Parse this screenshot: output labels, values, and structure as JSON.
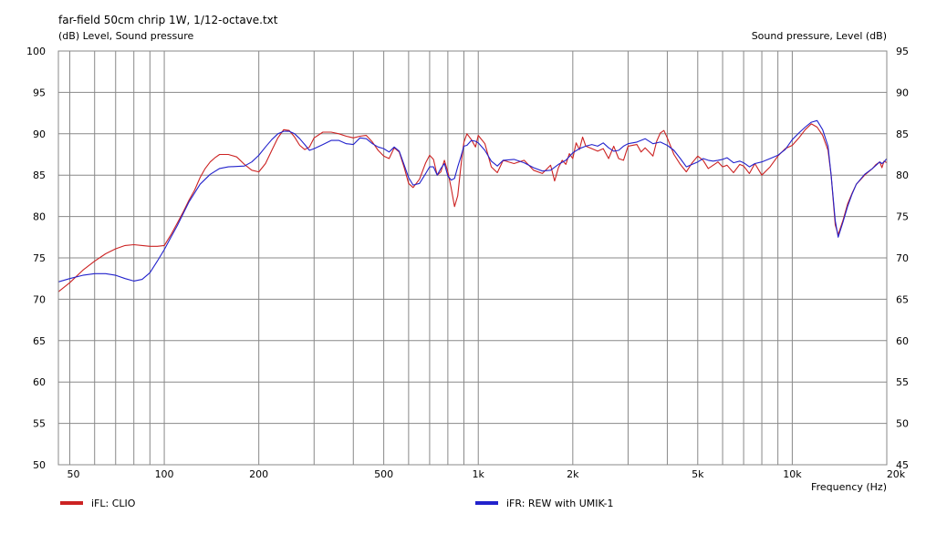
{
  "chart_data": {
    "type": "line",
    "title": "far-field 50cm chrip 1W, 1/12-octave.txt",
    "ylabel_left": "(dB)  Level, Sound pressure",
    "ylabel_right": "Sound pressure, Level  (dB)",
    "xlabel": "Frequency  (Hz)",
    "x_scale": "log",
    "xlim": [
      46,
      20000
    ],
    "ylim": [
      50,
      100
    ],
    "ylim_right": [
      45,
      95
    ],
    "x_ticks": [
      {
        "v": 50,
        "label": "50"
      },
      {
        "v": 100,
        "label": "100"
      },
      {
        "v": 200,
        "label": "200"
      },
      {
        "v": 500,
        "label": "500"
      },
      {
        "v": 1000,
        "label": "1k"
      },
      {
        "v": 2000,
        "label": "2k"
      },
      {
        "v": 5000,
        "label": "5k"
      },
      {
        "v": 10000,
        "label": "10k"
      },
      {
        "v": 20000,
        "label": "20k"
      }
    ],
    "y_ticks_left": [
      "100",
      "95",
      "90",
      "85",
      "80",
      "75",
      "70",
      "65",
      "60",
      "55",
      "50"
    ],
    "y_ticks_right": [
      "95",
      "90",
      "85",
      "80",
      "75",
      "70",
      "65",
      "60",
      "55",
      "50",
      "45"
    ],
    "grid": true,
    "legend_position": "bottom",
    "series": [
      {
        "name": "iFL: CLIO",
        "color": "#cc2222",
        "points": [
          [
            46,
            70.9
          ],
          [
            50,
            72.0
          ],
          [
            55,
            73.5
          ],
          [
            60,
            74.6
          ],
          [
            65,
            75.5
          ],
          [
            70,
            76.1
          ],
          [
            75,
            76.5
          ],
          [
            80,
            76.6
          ],
          [
            85,
            76.5
          ],
          [
            90,
            76.4
          ],
          [
            95,
            76.4
          ],
          [
            100,
            76.5
          ],
          [
            105,
            77.8
          ],
          [
            110,
            79.2
          ],
          [
            115,
            80.6
          ],
          [
            120,
            82.0
          ],
          [
            125,
            83.2
          ],
          [
            130,
            84.7
          ],
          [
            135,
            85.8
          ],
          [
            140,
            86.6
          ],
          [
            145,
            87.1
          ],
          [
            150,
            87.5
          ],
          [
            160,
            87.5
          ],
          [
            170,
            87.2
          ],
          [
            180,
            86.3
          ],
          [
            190,
            85.6
          ],
          [
            200,
            85.4
          ],
          [
            210,
            86.4
          ],
          [
            220,
            88.0
          ],
          [
            230,
            89.5
          ],
          [
            240,
            90.5
          ],
          [
            250,
            90.4
          ],
          [
            260,
            89.6
          ],
          [
            270,
            88.6
          ],
          [
            280,
            88.1
          ],
          [
            290,
            88.4
          ],
          [
            300,
            89.5
          ],
          [
            320,
            90.2
          ],
          [
            340,
            90.2
          ],
          [
            360,
            90.0
          ],
          [
            380,
            89.7
          ],
          [
            400,
            89.5
          ],
          [
            420,
            89.7
          ],
          [
            440,
            89.8
          ],
          [
            460,
            89.0
          ],
          [
            480,
            88.0
          ],
          [
            500,
            87.3
          ],
          [
            520,
            87.0
          ],
          [
            540,
            88.3
          ],
          [
            560,
            87.8
          ],
          [
            580,
            86.0
          ],
          [
            600,
            84.0
          ],
          [
            620,
            83.5
          ],
          [
            650,
            84.5
          ],
          [
            680,
            86.5
          ],
          [
            700,
            87.4
          ],
          [
            720,
            86.9
          ],
          [
            740,
            85.0
          ],
          [
            760,
            85.4
          ],
          [
            780,
            86.8
          ],
          [
            800,
            85.4
          ],
          [
            820,
            83.4
          ],
          [
            840,
            81.2
          ],
          [
            860,
            82.5
          ],
          [
            880,
            86.0
          ],
          [
            900,
            89.0
          ],
          [
            920,
            90.0
          ],
          [
            950,
            89.3
          ],
          [
            980,
            88.4
          ],
          [
            1000,
            89.8
          ],
          [
            1050,
            88.8
          ],
          [
            1100,
            86.0
          ],
          [
            1150,
            85.3
          ],
          [
            1200,
            86.8
          ],
          [
            1300,
            86.4
          ],
          [
            1400,
            86.8
          ],
          [
            1500,
            85.6
          ],
          [
            1600,
            85.2
          ],
          [
            1700,
            86.2
          ],
          [
            1750,
            84.3
          ],
          [
            1800,
            85.9
          ],
          [
            1850,
            86.8
          ],
          [
            1900,
            86.3
          ],
          [
            1950,
            87.6
          ],
          [
            2000,
            87.0
          ],
          [
            2050,
            88.9
          ],
          [
            2100,
            88.1
          ],
          [
            2150,
            89.6
          ],
          [
            2200,
            88.5
          ],
          [
            2300,
            88.2
          ],
          [
            2400,
            87.9
          ],
          [
            2500,
            88.2
          ],
          [
            2600,
            87.0
          ],
          [
            2700,
            88.5
          ],
          [
            2800,
            87.0
          ],
          [
            2900,
            86.8
          ],
          [
            3000,
            88.5
          ],
          [
            3200,
            88.7
          ],
          [
            3300,
            87.8
          ],
          [
            3400,
            88.3
          ],
          [
            3500,
            87.8
          ],
          [
            3600,
            87.3
          ],
          [
            3700,
            89.1
          ],
          [
            3800,
            90.1
          ],
          [
            3900,
            90.4
          ],
          [
            4000,
            89.5
          ],
          [
            4200,
            87.5
          ],
          [
            4400,
            86.3
          ],
          [
            4600,
            85.4
          ],
          [
            4800,
            86.5
          ],
          [
            5000,
            87.3
          ],
          [
            5200,
            86.8
          ],
          [
            5400,
            85.8
          ],
          [
            5600,
            86.2
          ],
          [
            5800,
            86.6
          ],
          [
            6000,
            86.0
          ],
          [
            6200,
            86.2
          ],
          [
            6500,
            85.3
          ],
          [
            6800,
            86.3
          ],
          [
            7000,
            86.1
          ],
          [
            7300,
            85.2
          ],
          [
            7600,
            86.4
          ],
          [
            8000,
            85.0
          ],
          [
            8500,
            86.0
          ],
          [
            9000,
            87.3
          ],
          [
            9500,
            88.2
          ],
          [
            10000,
            88.6
          ],
          [
            10500,
            89.5
          ],
          [
            11000,
            90.5
          ],
          [
            11500,
            91.2
          ],
          [
            12000,
            90.8
          ],
          [
            12500,
            89.8
          ],
          [
            13000,
            88.0
          ],
          [
            13300,
            85.0
          ],
          [
            13700,
            79.0
          ],
          [
            14000,
            77.8
          ],
          [
            14500,
            79.5
          ],
          [
            15000,
            81.5
          ],
          [
            15500,
            82.8
          ],
          [
            16000,
            83.9
          ],
          [
            17000,
            85.0
          ],
          [
            18000,
            85.8
          ],
          [
            18500,
            86.3
          ],
          [
            19000,
            86.6
          ],
          [
            19300,
            85.9
          ],
          [
            19600,
            86.7
          ],
          [
            20000,
            86.5
          ]
        ]
      },
      {
        "name": "iFR: REW with UMIK-1",
        "color": "#2222cc",
        "points": [
          [
            46,
            72.1
          ],
          [
            50,
            72.5
          ],
          [
            55,
            72.9
          ],
          [
            60,
            73.1
          ],
          [
            65,
            73.1
          ],
          [
            70,
            72.9
          ],
          [
            75,
            72.5
          ],
          [
            80,
            72.2
          ],
          [
            85,
            72.4
          ],
          [
            90,
            73.2
          ],
          [
            95,
            74.6
          ],
          [
            100,
            76.0
          ],
          [
            105,
            77.5
          ],
          [
            110,
            78.9
          ],
          [
            115,
            80.4
          ],
          [
            120,
            81.8
          ],
          [
            130,
            83.9
          ],
          [
            140,
            85.1
          ],
          [
            150,
            85.8
          ],
          [
            160,
            86.0
          ],
          [
            180,
            86.1
          ],
          [
            190,
            86.6
          ],
          [
            200,
            87.4
          ],
          [
            210,
            88.4
          ],
          [
            220,
            89.3
          ],
          [
            230,
            90.0
          ],
          [
            240,
            90.3
          ],
          [
            250,
            90.3
          ],
          [
            260,
            90.0
          ],
          [
            270,
            89.4
          ],
          [
            280,
            88.7
          ],
          [
            290,
            88.0
          ],
          [
            300,
            88.2
          ],
          [
            320,
            88.7
          ],
          [
            340,
            89.2
          ],
          [
            360,
            89.2
          ],
          [
            380,
            88.8
          ],
          [
            400,
            88.7
          ],
          [
            420,
            89.5
          ],
          [
            440,
            89.4
          ],
          [
            460,
            88.8
          ],
          [
            480,
            88.4
          ],
          [
            500,
            88.2
          ],
          [
            520,
            87.8
          ],
          [
            540,
            88.4
          ],
          [
            560,
            87.9
          ],
          [
            580,
            86.3
          ],
          [
            600,
            84.7
          ],
          [
            620,
            83.8
          ],
          [
            650,
            84.0
          ],
          [
            680,
            85.2
          ],
          [
            700,
            86.0
          ],
          [
            720,
            86.0
          ],
          [
            740,
            85.0
          ],
          [
            760,
            85.8
          ],
          [
            780,
            86.4
          ],
          [
            800,
            84.9
          ],
          [
            820,
            84.4
          ],
          [
            840,
            84.6
          ],
          [
            860,
            86.0
          ],
          [
            880,
            87.2
          ],
          [
            900,
            88.5
          ],
          [
            920,
            88.6
          ],
          [
            950,
            89.2
          ],
          [
            980,
            89.1
          ],
          [
            1000,
            88.9
          ],
          [
            1050,
            88.0
          ],
          [
            1100,
            86.7
          ],
          [
            1150,
            86.1
          ],
          [
            1200,
            86.8
          ],
          [
            1300,
            86.9
          ],
          [
            1400,
            86.5
          ],
          [
            1500,
            85.9
          ],
          [
            1600,
            85.5
          ],
          [
            1700,
            85.6
          ],
          [
            1800,
            86.3
          ],
          [
            1900,
            86.8
          ],
          [
            2000,
            87.7
          ],
          [
            2100,
            88.2
          ],
          [
            2200,
            88.5
          ],
          [
            2300,
            88.7
          ],
          [
            2400,
            88.5
          ],
          [
            2500,
            88.9
          ],
          [
            2600,
            88.3
          ],
          [
            2700,
            87.9
          ],
          [
            2800,
            88.0
          ],
          [
            2900,
            88.5
          ],
          [
            3000,
            88.8
          ],
          [
            3200,
            89.0
          ],
          [
            3400,
            89.4
          ],
          [
            3600,
            88.8
          ],
          [
            3800,
            89.0
          ],
          [
            4000,
            88.6
          ],
          [
            4200,
            88.0
          ],
          [
            4400,
            87.0
          ],
          [
            4600,
            86.0
          ],
          [
            4800,
            86.3
          ],
          [
            5000,
            86.6
          ],
          [
            5200,
            87.0
          ],
          [
            5400,
            86.8
          ],
          [
            5600,
            86.7
          ],
          [
            5800,
            86.8
          ],
          [
            6000,
            86.9
          ],
          [
            6200,
            87.1
          ],
          [
            6500,
            86.5
          ],
          [
            6800,
            86.7
          ],
          [
            7000,
            86.5
          ],
          [
            7300,
            86.0
          ],
          [
            7600,
            86.4
          ],
          [
            8000,
            86.6
          ],
          [
            8500,
            87.0
          ],
          [
            9000,
            87.4
          ],
          [
            9500,
            88.1
          ],
          [
            10000,
            89.3
          ],
          [
            10500,
            90.1
          ],
          [
            11000,
            90.8
          ],
          [
            11500,
            91.4
          ],
          [
            12000,
            91.6
          ],
          [
            12500,
            90.5
          ],
          [
            13000,
            88.5
          ],
          [
            13300,
            85.0
          ],
          [
            13700,
            79.5
          ],
          [
            14000,
            77.5
          ],
          [
            14500,
            79.3
          ],
          [
            15000,
            81.2
          ],
          [
            15500,
            82.7
          ],
          [
            16000,
            83.9
          ],
          [
            17000,
            85.1
          ],
          [
            18000,
            85.8
          ],
          [
            18500,
            86.2
          ],
          [
            19000,
            86.6
          ],
          [
            19300,
            86.4
          ],
          [
            19600,
            86.6
          ],
          [
            20000,
            87.0
          ]
        ]
      }
    ]
  }
}
